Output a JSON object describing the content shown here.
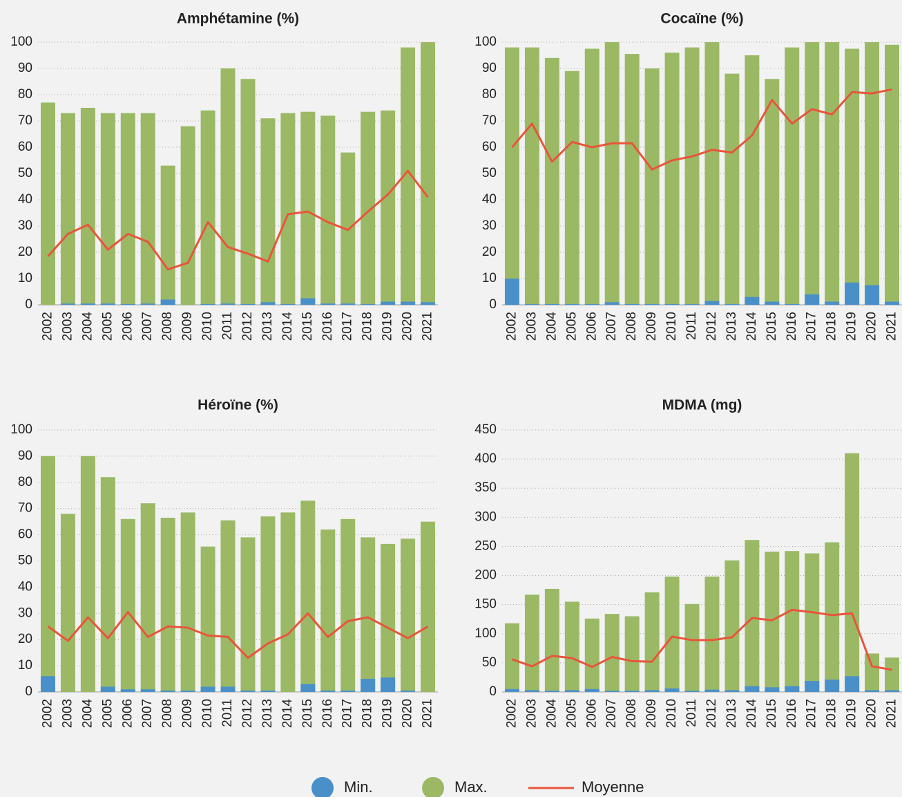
{
  "chart_data": [
    {
      "type": "bar",
      "title": "Amphétamine (%)",
      "categories": [
        "2002",
        "2003",
        "2004",
        "2005",
        "2006",
        "2007",
        "2008",
        "2009",
        "2010",
        "2011",
        "2012",
        "2013",
        "2014",
        "2015",
        "2016",
        "2017",
        "2018",
        "2019",
        "2020",
        "2021"
      ],
      "ylim": [
        0,
        100
      ],
      "yticks": [
        0,
        10,
        20,
        30,
        40,
        50,
        60,
        70,
        80,
        90,
        100
      ],
      "grid": true,
      "series": [
        {
          "name": "Max.",
          "color": "#9bb965",
          "values": [
            77,
            73,
            75,
            73,
            73,
            73,
            53,
            68,
            74,
            90,
            86,
            71,
            73,
            73.5,
            72,
            58,
            73.5,
            74,
            98,
            100
          ]
        },
        {
          "name": "Min.",
          "color": "#4a90c8",
          "values": [
            0,
            0.5,
            0.5,
            0.5,
            0.3,
            0.5,
            2,
            0,
            0.3,
            0.5,
            0.3,
            1,
            0.3,
            2.5,
            0.5,
            0.5,
            0.3,
            1.2,
            1.2,
            1
          ]
        },
        {
          "name": "Moyenne",
          "type": "line",
          "color": "#e8553a",
          "values": [
            18.5,
            27,
            30.5,
            21,
            27,
            24,
            13.5,
            16,
            31.5,
            22,
            19.5,
            16.5,
            34.5,
            35.5,
            31.5,
            28.5,
            35.5,
            42,
            51,
            41
          ]
        }
      ]
    },
    {
      "type": "bar",
      "title": "Cocaïne (%)",
      "categories": [
        "2002",
        "2003",
        "2004",
        "2005",
        "2006",
        "2007",
        "2008",
        "2009",
        "2010",
        "2011",
        "2012",
        "2013",
        "2014",
        "2015",
        "2016",
        "2017",
        "2018",
        "2019",
        "2020",
        "2021"
      ],
      "ylim": [
        0,
        100
      ],
      "yticks": [
        0,
        10,
        20,
        30,
        40,
        50,
        60,
        70,
        80,
        90,
        100
      ],
      "grid": true,
      "series": [
        {
          "color": "#9bb965",
          "values": [
            98,
            98,
            94,
            89,
            97.5,
            100,
            95.5,
            90,
            96,
            98,
            100,
            88,
            95,
            86,
            98,
            100,
            100,
            97.5,
            100,
            99
          ]
        },
        {
          "color": "#4a90c8",
          "values": [
            10,
            0.3,
            0.3,
            0.3,
            0.3,
            1,
            0.3,
            0.3,
            0.3,
            0.3,
            1.5,
            0.3,
            3,
            1.2,
            0.3,
            4,
            1.2,
            8.5,
            7.5,
            1.2
          ]
        },
        {
          "type": "line",
          "color": "#e8553a",
          "values": [
            60,
            69,
            54.5,
            62,
            60,
            61.5,
            61.5,
            51.5,
            55,
            56.5,
            59,
            58,
            64.5,
            78,
            69,
            74.5,
            72.5,
            81,
            80.5,
            82
          ]
        }
      ]
    },
    {
      "type": "bar",
      "title": "Héroïne (%)",
      "categories": [
        "2002",
        "2003",
        "2004",
        "2005",
        "2006",
        "2007",
        "2008",
        "2009",
        "2010",
        "2011",
        "2012",
        "2013",
        "2014",
        "2015",
        "2016",
        "2017",
        "2018",
        "2019",
        "2020",
        "2021"
      ],
      "ylim": [
        0,
        100
      ],
      "yticks": [
        0,
        10,
        20,
        30,
        40,
        50,
        60,
        70,
        80,
        90,
        100
      ],
      "grid": true,
      "series": [
        {
          "color": "#9bb965",
          "values": [
            90,
            68,
            90,
            82,
            66,
            72,
            66.5,
            68.5,
            55.5,
            65.5,
            59,
            67,
            68.5,
            73,
            62,
            66,
            59,
            56.5,
            58.5,
            65
          ]
        },
        {
          "color": "#4a90c8",
          "values": [
            6,
            0,
            0,
            2,
            1,
            1,
            0.5,
            0.5,
            2,
            2,
            0.5,
            0.5,
            0,
            3,
            0.5,
            0.5,
            5,
            5.5,
            0.5,
            0
          ]
        },
        {
          "type": "line",
          "color": "#e8553a",
          "values": [
            25,
            19.5,
            28.5,
            20.5,
            30.5,
            21,
            25,
            24.5,
            21.5,
            21,
            13,
            18.5,
            22,
            30,
            21,
            27,
            28.5,
            24.5,
            20.5,
            25
          ]
        }
      ]
    },
    {
      "type": "bar",
      "title": "MDMA (mg)",
      "categories": [
        "2002",
        "2003",
        "2004",
        "2005",
        "2006",
        "2007",
        "2008",
        "2009",
        "2010",
        "2011",
        "2012",
        "2013",
        "2014",
        "2015",
        "2016",
        "2017",
        "2018",
        "2019",
        "2020",
        "2021"
      ],
      "ylim": [
        0,
        450
      ],
      "yticks": [
        0,
        50,
        100,
        150,
        200,
        250,
        300,
        350,
        400,
        450
      ],
      "grid": true,
      "series": [
        {
          "color": "#9bb965",
          "values": [
            118,
            167,
            177,
            155,
            126,
            134,
            130,
            171,
            198,
            151,
            198,
            226,
            261,
            241,
            242,
            238,
            257,
            410,
            66,
            59
          ]
        },
        {
          "color": "#4a90c8",
          "values": [
            5,
            3,
            2,
            3,
            5,
            2,
            2,
            3,
            6,
            2,
            4,
            3,
            10,
            8,
            10,
            19,
            21,
            27,
            3,
            3
          ]
        },
        {
          "type": "line",
          "color": "#e8553a",
          "values": [
            56,
            44,
            62,
            58,
            43,
            60,
            53,
            52,
            95,
            89,
            89,
            94,
            127,
            123,
            141,
            137,
            132,
            135,
            44,
            38
          ]
        }
      ]
    }
  ]
}
